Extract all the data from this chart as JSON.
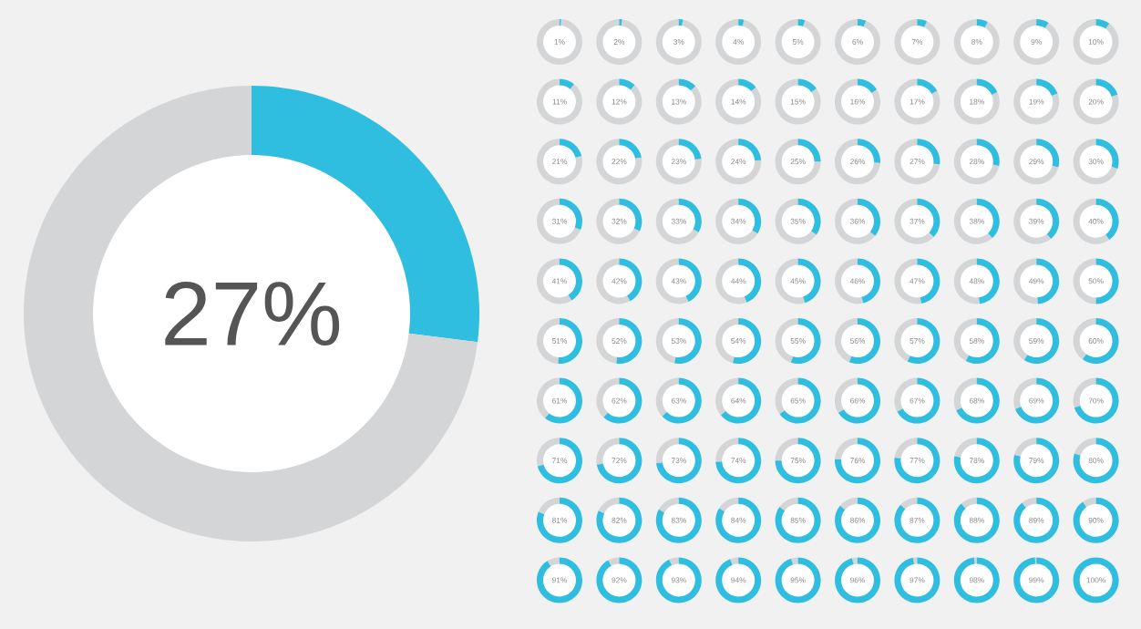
{
  "chart_data": [
    {
      "type": "donut",
      "categories": [
        null,
        null
      ],
      "values": [
        27,
        73
      ],
      "colors": [
        "#2fbedf",
        "#d4d5d7"
      ],
      "annotations": [
        "27%"
      ]
    },
    {
      "type": "other",
      "color": "#2fbedf",
      "values": [
        1,
        2,
        3,
        4,
        5,
        6,
        7,
        8,
        9,
        10,
        11,
        12,
        13,
        14,
        15,
        16,
        17,
        18,
        19,
        20,
        21,
        22,
        23,
        24,
        25,
        26,
        27,
        28,
        29,
        30,
        31,
        32,
        33,
        34,
        35,
        36,
        37,
        38,
        39,
        40,
        41,
        42,
        43,
        44,
        45,
        46,
        47,
        48,
        49,
        50,
        51,
        52,
        53,
        54,
        55,
        56,
        57,
        58,
        59,
        60,
        61,
        62,
        63,
        64,
        65,
        66,
        67,
        68,
        69,
        70,
        71,
        72,
        73,
        74,
        75,
        76,
        77,
        78,
        79,
        80,
        81,
        82,
        83,
        84,
        85,
        86,
        87,
        88,
        89,
        90,
        91,
        92,
        93,
        94,
        95,
        96,
        97,
        98,
        99,
        100
      ],
      "value_labels": [
        "1%",
        "2%",
        "3%",
        "4%",
        "5%",
        "6%",
        "7%",
        "8%",
        "9%",
        "10%",
        "11%",
        "12%",
        "13%",
        "14%",
        "15%",
        "16%",
        "17%",
        "18%",
        "19%",
        "20%",
        "21%",
        "22%",
        "23%",
        "24%",
        "25%",
        "26%",
        "27%",
        "28%",
        "29%",
        "30%",
        "31%",
        "32%",
        "33%",
        "34%",
        "35%",
        "36%",
        "37%",
        "38%",
        "39%",
        "40%",
        "41%",
        "42%",
        "43%",
        "44%",
        "45%",
        "46%",
        "47%",
        "48%",
        "49%",
        "50%",
        "51%",
        "52%",
        "53%",
        "54%",
        "55%",
        "56%",
        "57%",
        "58%",
        "59%",
        "60%",
        "61%",
        "62%",
        "63%",
        "64%",
        "65%",
        "66%",
        "67%",
        "68%",
        "69%",
        "70%",
        "71%",
        "72%",
        "73%",
        "74%",
        "75%",
        "76%",
        "77%",
        "78%",
        "79%",
        "80%",
        "81%",
        "82%",
        "83%",
        "84%",
        "85%",
        "86%",
        "87%",
        "88%",
        "89%",
        "90%",
        "91%",
        "92%",
        "93%",
        "94%",
        "95%",
        "96%",
        "97%",
        "98%",
        "99%",
        "100%"
      ]
    }
  ]
}
